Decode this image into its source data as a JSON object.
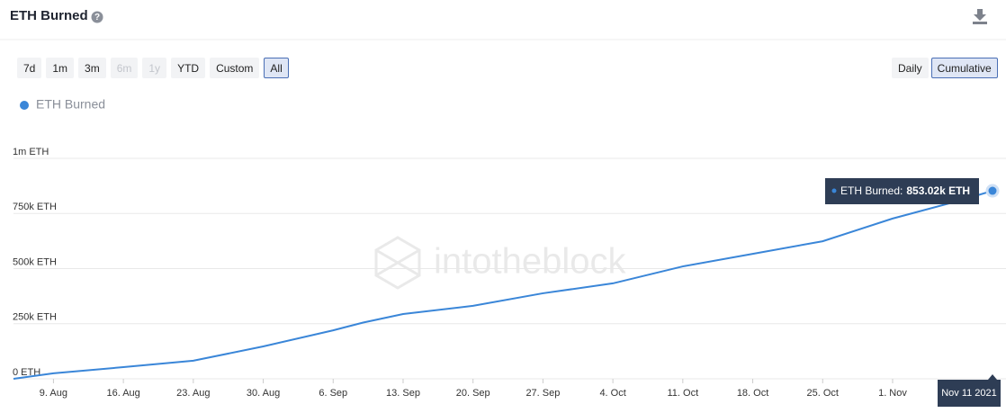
{
  "header": {
    "title": "ETH Burned"
  },
  "controls": {
    "ranges": [
      "7d",
      "1m",
      "3m",
      "6m",
      "1y",
      "YTD",
      "Custom",
      "All"
    ],
    "disabled_ranges": [
      "6m",
      "1y"
    ],
    "active_range": "All",
    "modes": [
      "Daily",
      "Cumulative"
    ],
    "active_mode": "Cumulative"
  },
  "chart_data": {
    "type": "line",
    "watermark": "intotheblock",
    "x": [
      "2021-08-05",
      "2021-08-09",
      "2021-08-16",
      "2021-08-23",
      "2021-08-30",
      "2021-09-06",
      "2021-09-09",
      "2021-09-13",
      "2021-09-20",
      "2021-09-27",
      "2021-10-04",
      "2021-10-11",
      "2021-10-18",
      "2021-10-25",
      "2021-11-01",
      "2021-11-08",
      "2021-11-11"
    ],
    "series": [
      {
        "name": "ETH Burned",
        "color": "#3a86d8",
        "values": [
          0,
          25000,
          53000,
          82000,
          147000,
          220000,
          255000,
          294000,
          331000,
          388000,
          433000,
          510000,
          567000,
          624000,
          727000,
          812000,
          853020
        ]
      }
    ],
    "xlim": [
      "2021-08-05",
      "2021-11-11"
    ],
    "xticks": [
      {
        "value": "2021-08-09",
        "label": "9. Aug"
      },
      {
        "value": "2021-08-16",
        "label": "16. Aug"
      },
      {
        "value": "2021-08-23",
        "label": "23. Aug"
      },
      {
        "value": "2021-08-30",
        "label": "30. Aug"
      },
      {
        "value": "2021-09-06",
        "label": "6. Sep"
      },
      {
        "value": "2021-09-13",
        "label": "13. Sep"
      },
      {
        "value": "2021-09-20",
        "label": "20. Sep"
      },
      {
        "value": "2021-09-27",
        "label": "27. Sep"
      },
      {
        "value": "2021-10-04",
        "label": "4. Oct"
      },
      {
        "value": "2021-10-11",
        "label": "11. Oct"
      },
      {
        "value": "2021-10-18",
        "label": "18. Oct"
      },
      {
        "value": "2021-10-25",
        "label": "25. Oct"
      },
      {
        "value": "2021-11-01",
        "label": "1. Nov"
      }
    ],
    "ylim": [
      0,
      1000000
    ],
    "yticks": [
      {
        "value": 0,
        "label": "0 ETH"
      },
      {
        "value": 250000,
        "label": "250k ETH"
      },
      {
        "value": 500000,
        "label": "500k ETH"
      },
      {
        "value": 750000,
        "label": "750k ETH"
      },
      {
        "value": 1000000,
        "label": "1m ETH"
      }
    ],
    "grid": true,
    "legend": "top-left",
    "tooltip": {
      "series_label": "ETH Burned:",
      "value": 853020,
      "label": "853.02k ETH",
      "date": "Nov 11 2021"
    }
  }
}
